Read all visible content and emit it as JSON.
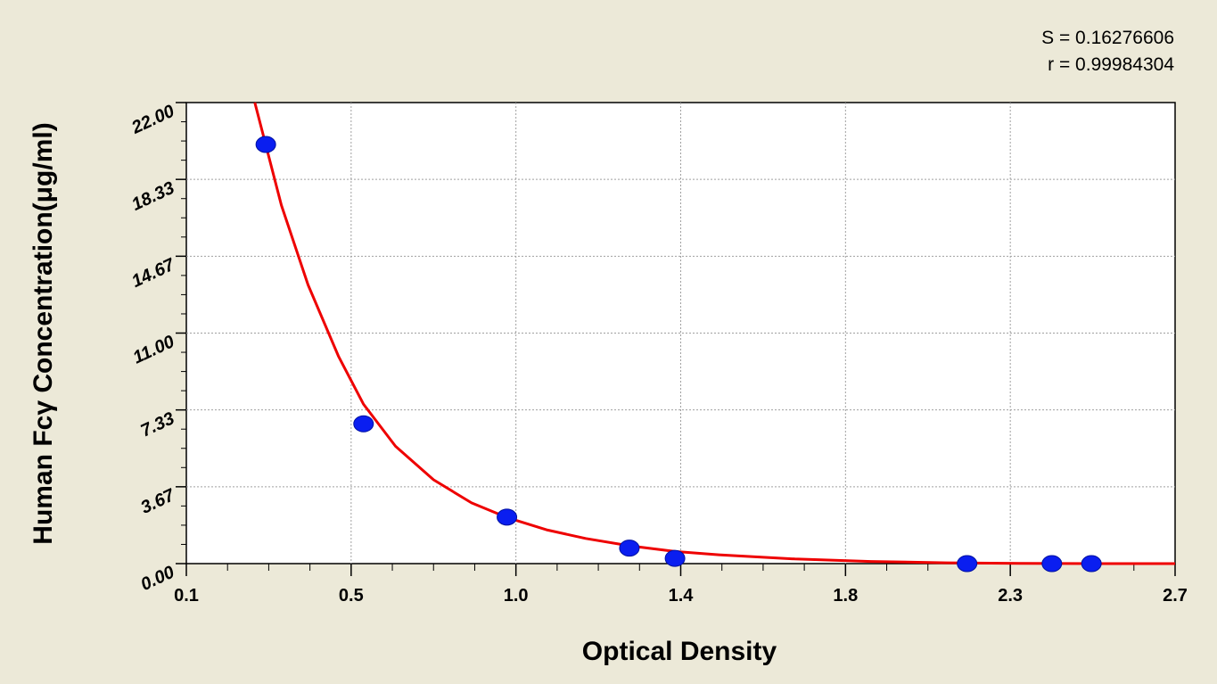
{
  "chart_data": {
    "type": "scatter",
    "xlabel": "Optical Density",
    "ylabel": "Human Fcγ Concentration(μg/ml)",
    "xlim": [
      0.1,
      2.7
    ],
    "ylim": [
      0,
      22
    ],
    "x_ticks": [
      "0.1",
      "0.5",
      "1.0",
      "1.4",
      "1.8",
      "2.3",
      "2.7"
    ],
    "y_ticks": [
      "0.00",
      "3.67",
      "7.33",
      "11.00",
      "14.67",
      "18.33",
      "22.00"
    ],
    "grid": true,
    "stats": {
      "s_label": "S = 0.16276606",
      "r_label": "r = 0.99984304"
    },
    "series": [
      {
        "points": [
          {
            "x": 0.309,
            "y": 20.0
          },
          {
            "x": 0.566,
            "y": 6.67
          },
          {
            "x": 0.943,
            "y": 2.22
          },
          {
            "x": 1.265,
            "y": 0.74
          },
          {
            "x": 1.385,
            "y": 0.25
          },
          {
            "x": 2.153,
            "y": 0.0
          },
          {
            "x": 2.376,
            "y": 0.0
          },
          {
            "x": 2.48,
            "y": 0.0
          }
        ]
      }
    ],
    "fit_curve": {
      "x": [
        0.28,
        0.35,
        0.42,
        0.5,
        0.566,
        0.65,
        0.75,
        0.85,
        0.943,
        1.05,
        1.15,
        1.265,
        1.385,
        1.5,
        1.7,
        1.9,
        2.1,
        2.3,
        2.5,
        2.7
      ],
      "y": [
        22.0,
        17.1,
        13.3,
        9.9,
        7.6,
        5.6,
        4.0,
        2.9,
        2.2,
        1.6,
        1.2,
        0.85,
        0.58,
        0.42,
        0.22,
        0.1,
        0.04,
        0.01,
        0.0,
        0.0
      ]
    },
    "colors": {
      "point": "#0a1ef0",
      "curve": "#ee0000",
      "plot_bg": "#ffffff",
      "page_bg": "#ece9d8",
      "grid": "#a0a0a0"
    }
  }
}
